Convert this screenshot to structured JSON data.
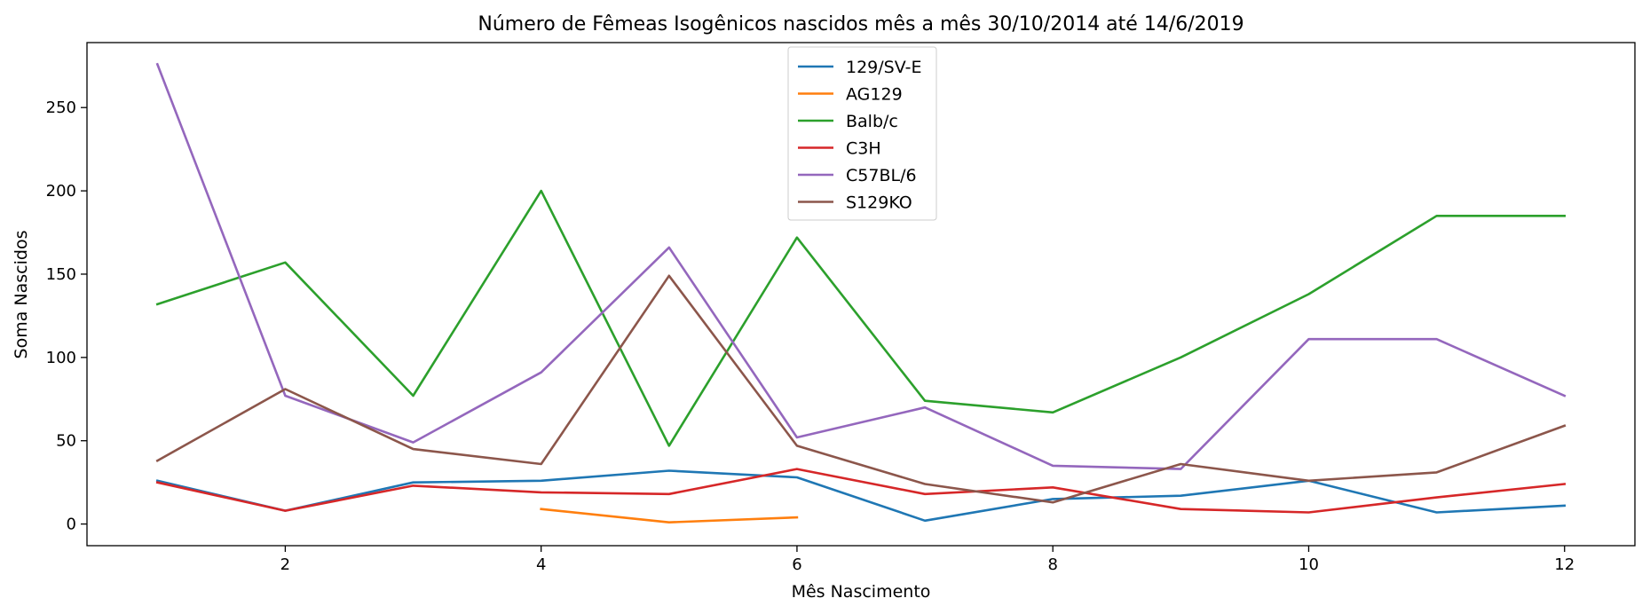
{
  "chart_data": {
    "type": "line",
    "title": "Número de Fêmeas Isogênicos nascidos mês a mês 30/10/2014 até 14/6/2019",
    "xlabel": "Mês Nascimento",
    "ylabel": "Soma Nascidos",
    "xlim": [
      0.45,
      12.55
    ],
    "ylim": [
      -13,
      289
    ],
    "xticks": [
      2,
      4,
      6,
      8,
      10,
      12
    ],
    "yticks": [
      0,
      50,
      100,
      150,
      200,
      250
    ],
    "legend_position": "upper center",
    "grid": false,
    "series": [
      {
        "name": "129/SV-E",
        "color": "#1f77b4",
        "x": [
          1,
          2,
          3,
          4,
          5,
          6,
          7,
          8,
          9,
          10,
          11,
          12
        ],
        "y": [
          26,
          8,
          25,
          26,
          32,
          28,
          2,
          15,
          17,
          26,
          7,
          11
        ]
      },
      {
        "name": "AG129",
        "color": "#ff7f0e",
        "x": [
          4,
          5,
          6
        ],
        "y": [
          9,
          1,
          4
        ]
      },
      {
        "name": "Balb/c",
        "color": "#2ca02c",
        "x": [
          1,
          2,
          3,
          4,
          5,
          6,
          7,
          8,
          9,
          10,
          11,
          12
        ],
        "y": [
          132,
          157,
          77,
          200,
          47,
          172,
          74,
          67,
          100,
          138,
          185,
          185
        ]
      },
      {
        "name": "C3H",
        "color": "#d62728",
        "x": [
          1,
          2,
          3,
          4,
          5,
          6,
          7,
          8,
          9,
          10,
          11,
          12
        ],
        "y": [
          25,
          8,
          23,
          19,
          18,
          33,
          18,
          22,
          9,
          7,
          16,
          24
        ]
      },
      {
        "name": "C57BL/6",
        "color": "#9467bd",
        "x": [
          1,
          2,
          3,
          4,
          5,
          6,
          7,
          8,
          9,
          10,
          11,
          12
        ],
        "y": [
          276,
          77,
          49,
          91,
          166,
          52,
          70,
          35,
          33,
          111,
          111,
          77
        ]
      },
      {
        "name": "S129KO",
        "color": "#8c564b",
        "x": [
          1,
          2,
          3,
          4,
          5,
          6,
          7,
          8,
          9,
          10,
          11,
          12
        ],
        "y": [
          38,
          81,
          45,
          36,
          149,
          47,
          24,
          13,
          36,
          26,
          31,
          59
        ]
      }
    ]
  }
}
